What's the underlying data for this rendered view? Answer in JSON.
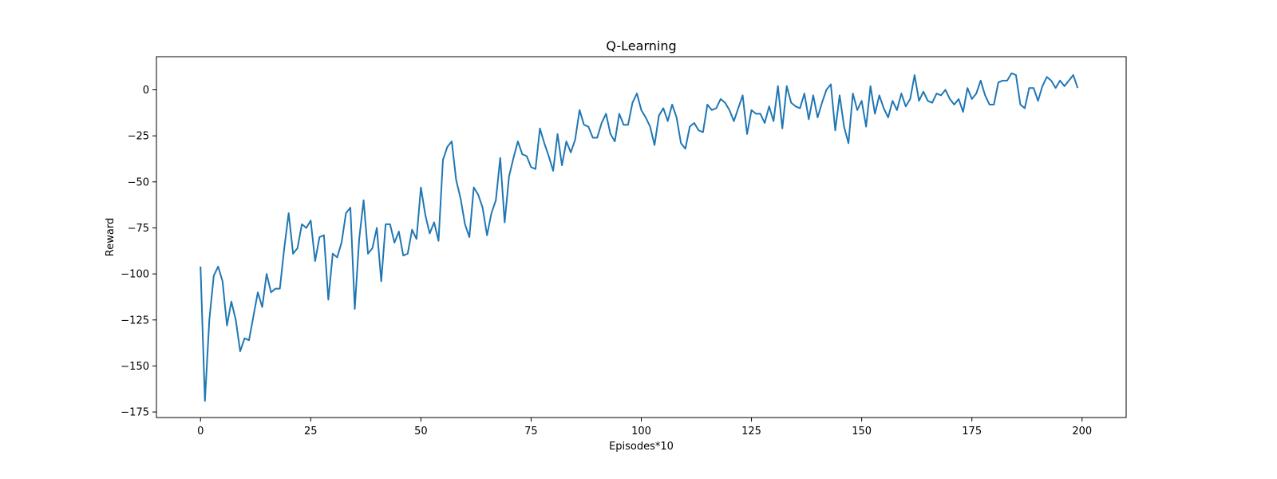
{
  "chart_data": {
    "type": "line",
    "title": "Q-Learning",
    "xlabel": "Episodes*10",
    "ylabel": "Reward",
    "xlim": [
      -10,
      210
    ],
    "ylim": [
      -178,
      18
    ],
    "x_ticks": [
      0,
      25,
      50,
      75,
      100,
      125,
      150,
      175,
      200
    ],
    "y_ticks": [
      0,
      -25,
      -50,
      -75,
      -100,
      -125,
      -150,
      -175
    ],
    "x_tick_labels": [
      "0",
      "25",
      "50",
      "75",
      "100",
      "125",
      "150",
      "175",
      "200"
    ],
    "y_tick_labels": [
      "0",
      "−25",
      "−50",
      "−75",
      "−100",
      "−125",
      "−150",
      "−175"
    ],
    "grid": false,
    "line_color": "#1f77b4",
    "series": [
      {
        "values": [
          -96,
          -169,
          -125,
          -101,
          -96,
          -104,
          -128,
          -115,
          -125,
          -142,
          -135,
          -136,
          -123,
          -110,
          -118,
          -100,
          -110,
          -108,
          -108,
          -86,
          -67,
          -89,
          -86,
          -73,
          -75,
          -71,
          -93,
          -80,
          -79,
          -114,
          -89,
          -91,
          -83,
          -67,
          -64,
          -119,
          -81,
          -60,
          -89,
          -86,
          -75,
          -104,
          -73,
          -73,
          -83,
          -77,
          -90,
          -89,
          -76,
          -81,
          -53,
          -68,
          -78,
          -72,
          -82,
          -38,
          -31,
          -28,
          -49,
          -59,
          -73,
          -80,
          -53,
          -57,
          -64,
          -79,
          -67,
          -60,
          -37,
          -72,
          -47,
          -37,
          -28,
          -35,
          -36,
          -42,
          -43,
          -21,
          -29,
          -36,
          -44,
          -24,
          -41,
          -28,
          -34,
          -27,
          -11,
          -19,
          -20,
          -26,
          -26,
          -18,
          -13,
          -24,
          -28,
          -13,
          -19,
          -19,
          -7,
          -2,
          -11,
          -15,
          -20,
          -30,
          -14,
          -10,
          -17,
          -8,
          -15,
          -29,
          -32,
          -20,
          -18,
          -22,
          -23,
          -8,
          -11,
          -10,
          -5,
          -7,
          -11,
          -17,
          -10,
          -3,
          -24,
          -11,
          -13,
          -13,
          -18,
          -9,
          -17,
          2,
          -21,
          2,
          -7,
          -9,
          -10,
          -2,
          -16,
          -3,
          -15,
          -7,
          0,
          3,
          -22,
          -3,
          -20,
          -29,
          -2,
          -11,
          -6,
          -20,
          2,
          -13,
          -3,
          -10,
          -15,
          -6,
          -11,
          -2,
          -9,
          -5,
          8,
          -6,
          -1,
          -6,
          -7,
          -2,
          -3,
          0,
          -5,
          -8,
          -5,
          -12,
          1,
          -5,
          -2,
          5,
          -3,
          -8,
          -8,
          4,
          5,
          5,
          9,
          8,
          -8,
          -10,
          1,
          1,
          -6,
          2,
          7,
          5,
          1,
          5,
          2,
          5,
          8,
          1
        ],
        "x_start": 0,
        "x_step": 1
      }
    ]
  }
}
